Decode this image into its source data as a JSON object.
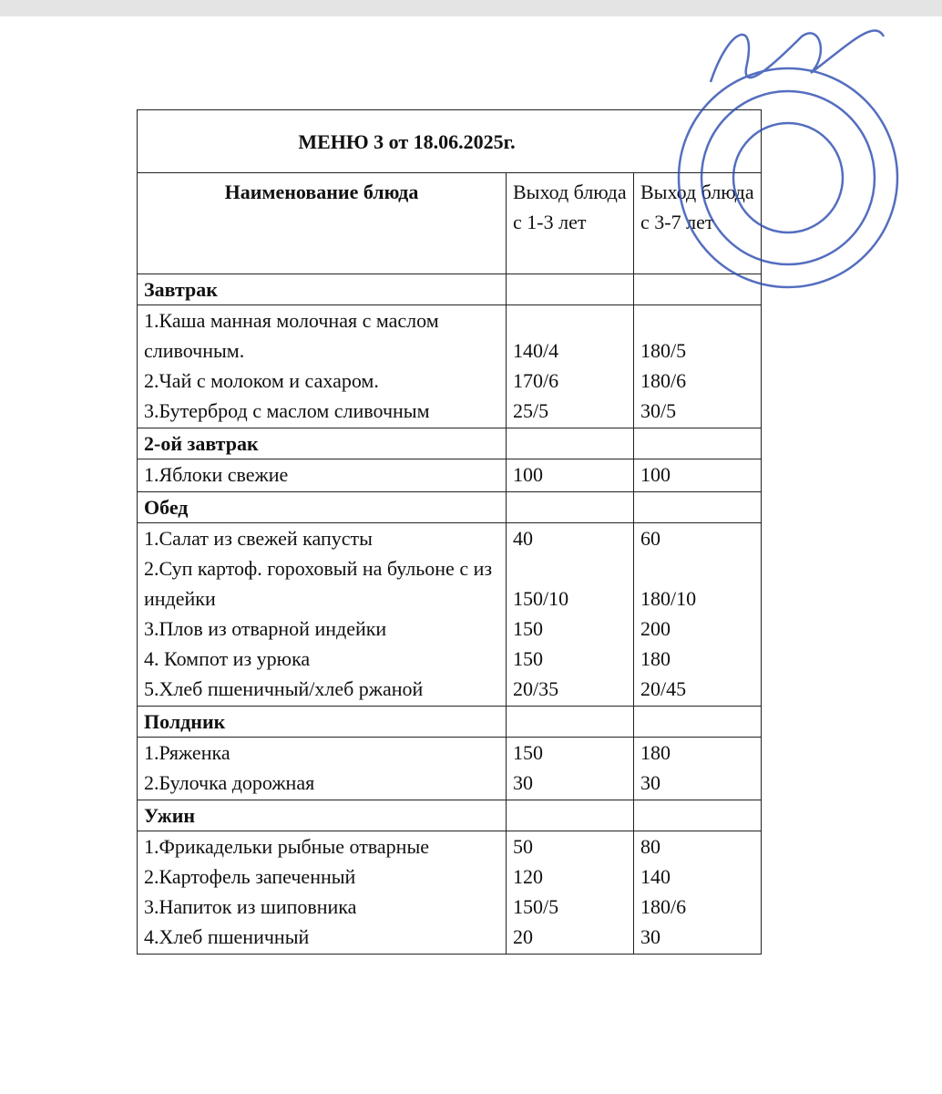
{
  "title": "МЕНЮ 3 от 18.06.2025г.",
  "header": [
    "Наименование блюда",
    "Выход блюда с 1-3 лет",
    "Выход блюда  с 3-7 лет"
  ],
  "sections": [
    {
      "name": "Завтрак",
      "items": [
        {
          "dish": "1.Каша манная молочная с маслом сливочным.",
          "age_1_3": "140/4",
          "age_3_7": "180/5"
        },
        {
          "dish": "2.Чай с молоком и сахаром.",
          "age_1_3": "170/6",
          "age_3_7": "180/6"
        },
        {
          "dish": "3.Бутерброд с маслом сливочным",
          "age_1_3": "25/5",
          "age_3_7": "30/5"
        }
      ]
    },
    {
      "name": "2-ой завтрак",
      "items": [
        {
          "dish": "1.Яблоки свежие",
          "age_1_3": "100",
          "age_3_7": "100"
        }
      ]
    },
    {
      "name": "Обед",
      "items": [
        {
          "dish": "1.Салат из свежей капусты",
          "age_1_3": "40",
          "age_3_7": "60"
        },
        {
          "dish": "2.Суп  картоф.   гороховый на  бульоне с из индейки",
          "age_1_3": "150/10",
          "age_3_7": "180/10"
        },
        {
          "dish": "3.Плов  из отварной индейки",
          "age_1_3": "150",
          "age_3_7": "200"
        },
        {
          "dish": "4. Компот из урюка",
          "age_1_3": "150",
          "age_3_7": "180"
        },
        {
          "dish": "5.Хлеб пшеничный/хлеб ржаной",
          "age_1_3": "20/35",
          "age_3_7": "20/45"
        }
      ]
    },
    {
      "name": "Полдник",
      "items": [
        {
          "dish": "1.Ряженка",
          "age_1_3": "150",
          "age_3_7": "180"
        },
        {
          "dish": "2.Булочка дорожная",
          "age_1_3": "30",
          "age_3_7": "30"
        }
      ]
    },
    {
      "name": "Ужин",
      "items": [
        {
          "dish": "1.Фрикадельки  рыбные отварные",
          "age_1_3": "50",
          "age_3_7": "80"
        },
        {
          "dish": "2.Картофель запеченный",
          "age_1_3": "120",
          "age_3_7": "140"
        },
        {
          "dish": "3.Напиток из шиповника",
          "age_1_3": "150/5",
          "age_3_7": "180/6"
        },
        {
          "dish": "4.Хлеб пшеничный",
          "age_1_3": "20",
          "age_3_7": "30"
        }
      ]
    }
  ]
}
